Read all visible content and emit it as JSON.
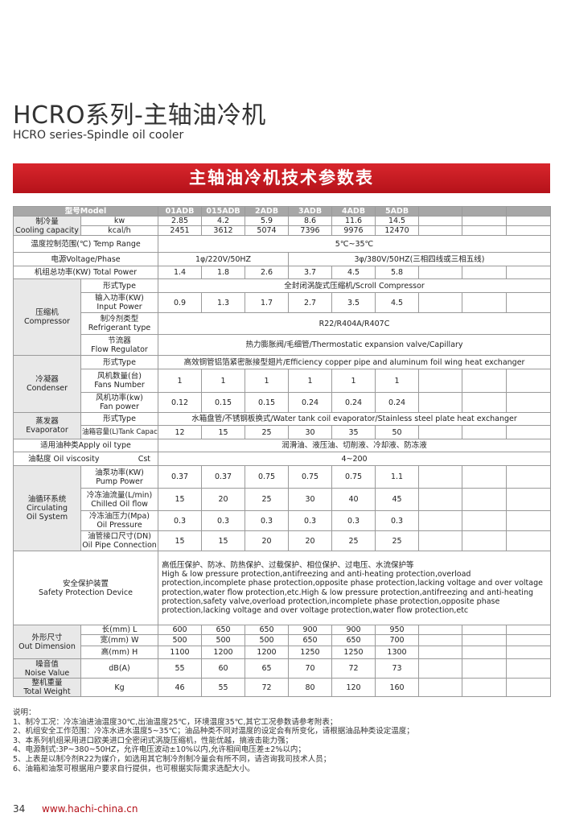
{
  "header": {
    "title": "HCRO系列-主轴油冷机",
    "subtitle": "HCRO series-Spindle oil cooler",
    "banner": "主轴油冷机技术参数表"
  },
  "table": {
    "header": {
      "label": "型号Model",
      "models": [
        "01ADB",
        "015ADB",
        "2ADB",
        "3ADB",
        "4ADB",
        "5ADB"
      ]
    },
    "cooling": {
      "label_cn": "制冷量",
      "label_en": "Cooling capacity",
      "kw_unit": "kw",
      "kw": [
        2.85,
        4.2,
        5.9,
        8.6,
        11.6,
        14.5
      ],
      "kcal_unit": "kcal/h",
      "kcal": [
        2451,
        3612,
        5074,
        7396,
        9976,
        12470
      ]
    },
    "temp_range": {
      "label": "温度控制范围(℃) Temp Range",
      "value": "5℃~35℃"
    },
    "power_supply": {
      "label": "电源Voltage/Phase",
      "single": "1φ/220V/50HZ",
      "three": "3φ/380V/50HZ(三相四线或三相五线)"
    },
    "total_power": {
      "label": "机组总功率(KW) Total Power",
      "values": [
        1.4,
        1.8,
        2.6,
        3.7,
        4.5,
        5.8
      ]
    },
    "compressor": {
      "label_cn": "压缩机",
      "label_en": "Compressor",
      "type_label": "形式Type",
      "type": "全封闭涡旋式压缩机/Scroll Compressor",
      "input_label_cn": "输入功率(KW)",
      "input_label_en": "Input Power",
      "input": [
        0.9,
        1.3,
        1.7,
        2.7,
        3.5,
        4.5
      ],
      "refrigerant_label_cn": "制冷剂类型",
      "refrigerant_label_en": "Refrigerant type",
      "refrigerant": "R22/R404A/R407C",
      "throttle_label_cn": "节流器",
      "throttle_label_en": "Flow Regulator",
      "throttle": "热力膨胀阀/毛细管/Thermostatic expansion valve/Capillary"
    },
    "condenser": {
      "label_cn": "冷凝器",
      "label_en": "Condenser",
      "type_label": "形式Type",
      "type": "高效铜管铝箔紧密胀接型翅片/Efficiency copper pipe and aluminum foil wing heat exchanger",
      "fans_label_cn": "风机数量(台)",
      "fans_label_en": "Fans Number",
      "fans": [
        1,
        1,
        1,
        1,
        1,
        1
      ],
      "fan_power_label_cn": "风机功率(kw)",
      "fan_power_label_en": "Fan power",
      "fan_power": [
        0.12,
        0.15,
        0.15,
        0.24,
        0.24,
        0.24
      ]
    },
    "evaporator": {
      "label_cn": "蒸发器",
      "label_en": "Evaporator",
      "type_label": "形式Type",
      "type": "水箱盘管/不锈钢板换式/Water tank coil evaporator/Stainless steel plate heat exchanger",
      "tank_label": "油箱容量(L)Tank Capacity",
      "tank": [
        12,
        15,
        25,
        30,
        35,
        50
      ]
    },
    "oil_type": {
      "label": "适用油种类Apply oil type",
      "value": "润滑油、液压油、切削液、冷却液、防冻液"
    },
    "viscosity": {
      "label": "油黏度 Oil viscosity",
      "unit": "Cst",
      "value": "4~200"
    },
    "oil_circulation": {
      "label_cn": "油循环系统",
      "label_en1": "Circulating",
      "label_en2": "Oil System",
      "pump_label_cn": "油泵功率(KW)",
      "pump_label_en": "Pump Power",
      "pump": [
        0.37,
        0.37,
        0.75,
        0.75,
        0.75,
        1.1
      ],
      "flow_label_cn": "冷冻油流量(L/min)",
      "flow_label_en": "Chilled Oil flow",
      "flow": [
        15,
        20,
        25,
        30,
        40,
        45
      ],
      "pressure_label_cn": "冷冻油压力(Mpa)",
      "pressure_label_en": "Oil Pressure",
      "pressure": [
        0.3,
        0.3,
        0.3,
        0.3,
        0.3,
        0.3
      ],
      "pipe_label_cn": "油管接口尺寸(DN)",
      "pipe_label_en": "Oil Pipe Connection",
      "pipe": [
        15,
        15,
        20,
        20,
        25,
        25
      ]
    },
    "safety": {
      "label_cn": "安全保护装置",
      "label_en": "Safety Protection Device",
      "text_cn": "高低压保护、防冰、防热保护、过载保护、相位保护、过电压、水流保护等",
      "text_en": "High & low pressure protection,antifreezing and anti-heating protection,overload protection,incomplete phase protection,opposite phase protection,lacking voltage and over voltage protection,water flow protection,etc.High & low pressure protection,antifreezing and anti-heating protection,safety valve,overload protection,incomplete phase protection,opposite phase protection,lacking voltage and over voltage protection,water flow protection,etc"
    },
    "dimension": {
      "label_cn": "外形尺寸",
      "label_en": "Out Dimension",
      "length_label": "长(mm) L",
      "length": [
        600,
        650,
        650,
        900,
        900,
        950
      ],
      "width_label": "宽(mm) W",
      "width": [
        500,
        500,
        500,
        650,
        650,
        700
      ],
      "height_label": "高(mm) H",
      "height": [
        1100,
        1200,
        1200,
        1250,
        1250,
        1300
      ]
    },
    "noise": {
      "label_cn": "噪音值",
      "label_en": "Noise Value",
      "unit": "dB(A)",
      "values": [
        55,
        60,
        65,
        70,
        72,
        73
      ]
    },
    "weight": {
      "label_cn": "整机重量",
      "label_en": "Total Weight",
      "unit": "Kg",
      "values": [
        46,
        55,
        72,
        80,
        120,
        160
      ]
    }
  },
  "notes": {
    "title": "说明：",
    "lines": [
      "1、制冷工况：冷冻油进油温度30℃,出油温度25℃，环境温度35℃,其它工况参数请参考附表；",
      "2、机组安全工作范围：冷冻水进水温度5~35℃；油品种类不同对温度的设定会有所变化，请根据油品种类设定温度；",
      "3、本系列机组采用进口欧美进口全密闭式涡旋压缩机，性能优越，搞液击能力强；",
      "4、电源制式:3P~380~50HZ，允许电压波动±10%以内,允许相间电压差±2%以内；",
      "5、上表是以制冷剂R22为媒介，如选用其它制冷剂制冷量会有所不同，请咨询我司技术人员；",
      "6、油箱和油泵可根据用户要求自行提供，也可根据实际需求选配大小。"
    ]
  },
  "footer": {
    "page": "34",
    "url": "www.hachi-china.cn"
  }
}
